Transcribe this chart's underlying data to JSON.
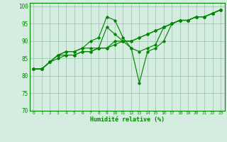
{
  "xlabel": "Humidité relative (%)",
  "xlim": [
    -0.5,
    23.5
  ],
  "ylim": [
    70,
    101
  ],
  "yticks": [
    70,
    75,
    80,
    85,
    90,
    95,
    100
  ],
  "xticks": [
    0,
    1,
    2,
    3,
    4,
    5,
    6,
    7,
    8,
    9,
    10,
    11,
    12,
    13,
    14,
    15,
    16,
    17,
    18,
    19,
    20,
    21,
    22,
    23
  ],
  "bg_color": "#d4ede0",
  "grid_color": "#a0c8b0",
  "line_color": "#008800",
  "lines": [
    [
      82,
      82,
      84,
      86,
      87,
      87,
      88,
      90,
      91,
      97,
      96,
      91,
      88,
      87,
      88,
      89,
      94,
      95,
      96,
      96,
      97,
      97,
      98,
      99
    ],
    [
      82,
      82,
      84,
      86,
      87,
      87,
      88,
      88,
      88,
      94,
      92,
      90,
      88,
      78,
      87,
      88,
      90,
      95,
      96,
      96,
      97,
      97,
      98,
      99
    ],
    [
      82,
      82,
      84,
      86,
      86,
      86,
      87,
      87,
      88,
      88,
      90,
      90,
      90,
      91,
      92,
      93,
      94,
      95,
      96,
      96,
      97,
      97,
      98,
      99
    ],
    [
      82,
      82,
      84,
      85,
      86,
      86,
      87,
      87,
      88,
      88,
      89,
      90,
      90,
      91,
      92,
      93,
      94,
      95,
      96,
      96,
      97,
      97,
      98,
      99
    ]
  ]
}
